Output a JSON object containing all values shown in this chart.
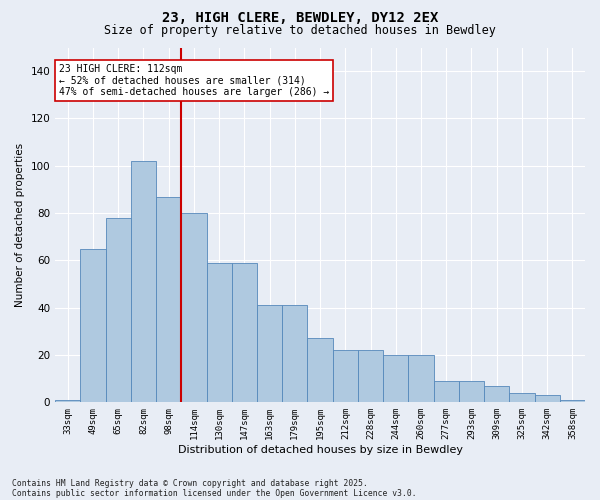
{
  "title": "23, HIGH CLERE, BEWDLEY, DY12 2EX",
  "subtitle": "Size of property relative to detached houses in Bewdley",
  "xlabel": "Distribution of detached houses by size in Bewdley",
  "ylabel": "Number of detached properties",
  "footer_line1": "Contains HM Land Registry data © Crown copyright and database right 2025.",
  "footer_line2": "Contains public sector information licensed under the Open Government Licence v3.0.",
  "categories": [
    "33sqm",
    "49sqm",
    "65sqm",
    "82sqm",
    "98sqm",
    "114sqm",
    "130sqm",
    "147sqm",
    "163sqm",
    "179sqm",
    "195sqm",
    "212sqm",
    "228sqm",
    "244sqm",
    "260sqm",
    "277sqm",
    "293sqm",
    "309sqm",
    "325sqm",
    "342sqm",
    "358sqm"
  ],
  "bar_heights": [
    1,
    65,
    78,
    102,
    87,
    80,
    59,
    59,
    41,
    41,
    27,
    22,
    22,
    20,
    20,
    9,
    9,
    7,
    4,
    3,
    1
  ],
  "bar_color": "#afc9e0",
  "bar_edge_color": "#5588bb",
  "background_color": "#e8edf5",
  "grid_color": "#ffffff",
  "vline_color": "#cc0000",
  "vline_position": 4.5,
  "annotation_line1": "23 HIGH CLERE: 112sqm",
  "annotation_line2": "← 52% of detached houses are smaller (314)",
  "annotation_line3": "47% of semi-detached houses are larger (286) →",
  "annotation_box_facecolor": "#ffffff",
  "annotation_box_edgecolor": "#cc0000",
  "ylim_max": 150,
  "yticks": [
    0,
    20,
    40,
    60,
    80,
    100,
    120,
    140
  ]
}
